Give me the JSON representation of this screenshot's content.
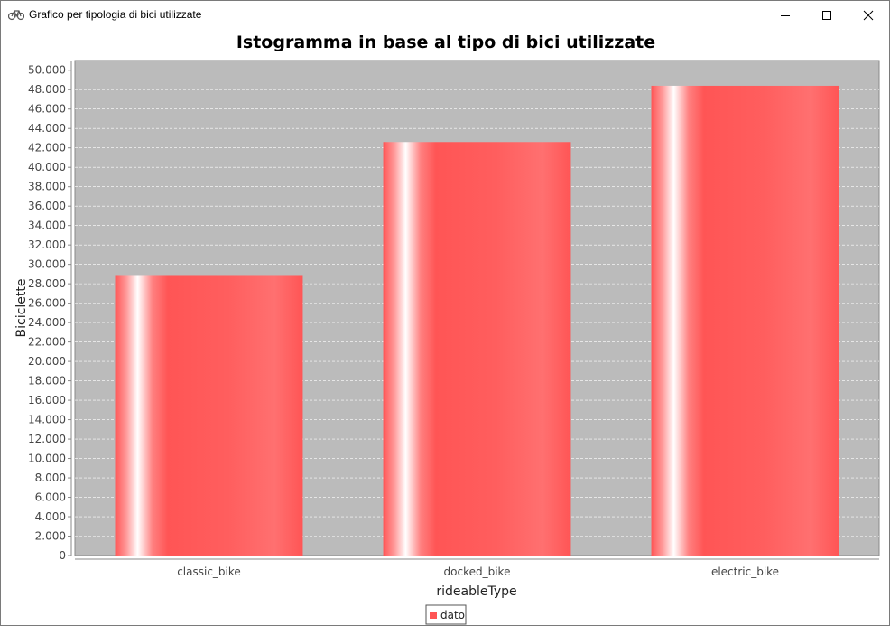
{
  "window": {
    "title": "Grafico per tipologia di bici utilizzate",
    "icon": "bicycle-icon",
    "controls": [
      "minimize-icon",
      "maximize-icon",
      "close-icon"
    ]
  },
  "colors": {
    "plot_background": "#bbbbbb",
    "bar_main": "#ff5555",
    "bar_highlight": "#ffffff",
    "gridline": "#ffffff"
  },
  "chart_data": {
    "type": "bar",
    "title": "Istogramma in base al tipo di bici utilizzate",
    "xlabel": "rideableType",
    "ylabel": "Biciclette",
    "categories": [
      "classic_bike",
      "docked_bike",
      "electric_bike"
    ],
    "series": [
      {
        "name": "dato",
        "values": [
          28900,
          42600,
          48400
        ]
      }
    ],
    "ylim": [
      0,
      51000
    ],
    "ytick_step": 2000,
    "yticks": [
      "0",
      "2.000",
      "4.000",
      "6.000",
      "8.000",
      "10.000",
      "12.000",
      "14.000",
      "16.000",
      "18.000",
      "20.000",
      "22.000",
      "24.000",
      "26.000",
      "28.000",
      "30.000",
      "32.000",
      "34.000",
      "36.000",
      "38.000",
      "40.000",
      "42.000",
      "44.000",
      "46.000",
      "48.000",
      "50.000"
    ],
    "grid": true,
    "legend": "bottom-center"
  }
}
